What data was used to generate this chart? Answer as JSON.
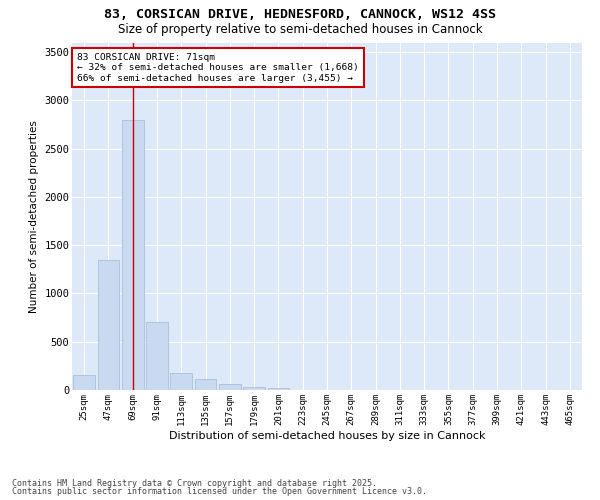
{
  "title1": "83, CORSICAN DRIVE, HEDNESFORD, CANNOCK, WS12 4SS",
  "title2": "Size of property relative to semi-detached houses in Cannock",
  "xlabel": "Distribution of semi-detached houses by size in Cannock",
  "ylabel": "Number of semi-detached properties",
  "categories": [
    "25sqm",
    "47sqm",
    "69sqm",
    "91sqm",
    "113sqm",
    "135sqm",
    "157sqm",
    "179sqm",
    "201sqm",
    "223sqm",
    "245sqm",
    "267sqm",
    "289sqm",
    "311sqm",
    "333sqm",
    "355sqm",
    "377sqm",
    "399sqm",
    "421sqm",
    "443sqm",
    "465sqm"
  ],
  "values": [
    155,
    1350,
    2800,
    700,
    175,
    110,
    65,
    30,
    18,
    4,
    3,
    2,
    1,
    0,
    0,
    0,
    0,
    0,
    0,
    0,
    0
  ],
  "bar_color": "#c9d9f0",
  "bar_edgecolor": "#a0b8d8",
  "vline_x": 2,
  "vline_color": "#cc0000",
  "ylim": [
    0,
    3600
  ],
  "yticks": [
    0,
    500,
    1000,
    1500,
    2000,
    2500,
    3000,
    3500
  ],
  "annotation_title": "83 CORSICAN DRIVE: 71sqm",
  "annotation_line1": "← 32% of semi-detached houses are smaller (1,668)",
  "annotation_line2": "66% of semi-detached houses are larger (3,455) →",
  "annotation_box_color": "#cc0000",
  "bg_color": "#dde8f8",
  "footer1": "Contains HM Land Registry data © Crown copyright and database right 2025.",
  "footer2": "Contains public sector information licensed under the Open Government Licence v3.0."
}
